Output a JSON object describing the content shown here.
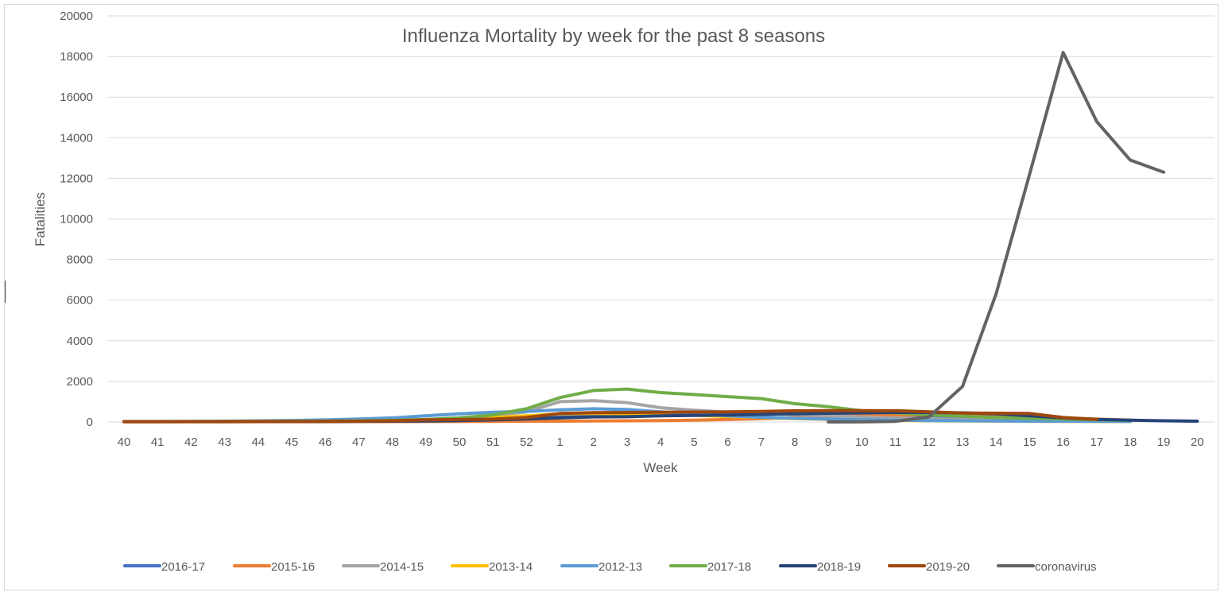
{
  "chart_data": {
    "type": "line",
    "title": "Influenza Mortality by week for the past 8 seasons",
    "xlabel": "Week",
    "ylabel": "Fatalities",
    "ylim": [
      0,
      20000
    ],
    "yticks": [
      "0",
      "2000",
      "4000",
      "6000",
      "8000",
      "10000",
      "12000",
      "14000",
      "16000",
      "18000",
      "20000"
    ],
    "categories": [
      "40",
      "41",
      "42",
      "43",
      "44",
      "45",
      "46",
      "47",
      "48",
      "49",
      "50",
      "51",
      "52",
      "1",
      "2",
      "3",
      "4",
      "5",
      "6",
      "7",
      "8",
      "9",
      "10",
      "11",
      "12",
      "13",
      "14",
      "15",
      "16",
      "17",
      "18",
      "19",
      "20"
    ],
    "grid": "horizontal",
    "legend_position": "bottom",
    "series": [
      {
        "name": "2016-17",
        "color": "#4472c4",
        "values": [
          20,
          20,
          20,
          20,
          20,
          25,
          30,
          35,
          45,
          60,
          75,
          100,
          150,
          250,
          350,
          400,
          420,
          430,
          440,
          420,
          380,
          350,
          320,
          290,
          260,
          220,
          180,
          150,
          110,
          80,
          60,
          null,
          null
        ]
      },
      {
        "name": "2015-16",
        "color": "#ed7d31",
        "values": [
          15,
          15,
          15,
          15,
          15,
          15,
          15,
          20,
          20,
          25,
          25,
          30,
          35,
          40,
          50,
          60,
          70,
          90,
          120,
          160,
          210,
          270,
          310,
          340,
          360,
          350,
          320,
          270,
          200,
          140,
          90,
          null,
          null
        ]
      },
      {
        "name": "2014-15",
        "color": "#a5a5a5",
        "values": [
          20,
          20,
          20,
          25,
          25,
          30,
          40,
          55,
          80,
          120,
          200,
          320,
          500,
          1000,
          1050,
          950,
          700,
          580,
          480,
          420,
          360,
          300,
          250,
          200,
          160,
          120,
          90,
          70,
          50,
          40,
          30,
          null,
          null
        ]
      },
      {
        "name": "2013-14",
        "color": "#ffc000",
        "values": [
          15,
          15,
          15,
          15,
          20,
          25,
          35,
          50,
          70,
          100,
          150,
          220,
          300,
          400,
          420,
          410,
          380,
          330,
          270,
          220,
          170,
          130,
          100,
          80,
          60,
          50,
          40,
          35,
          30,
          25,
          20,
          null,
          null
        ]
      },
      {
        "name": "2012-13",
        "color": "#5b9bd5",
        "values": [
          20,
          25,
          30,
          40,
          55,
          75,
          100,
          150,
          200,
          300,
          400,
          480,
          520,
          600,
          650,
          620,
          500,
          400,
          300,
          230,
          180,
          140,
          110,
          90,
          70,
          60,
          50,
          40,
          35,
          30,
          25,
          null,
          null
        ]
      },
      {
        "name": "2017-18",
        "color": "#70ad47",
        "values": [
          20,
          20,
          20,
          25,
          30,
          35,
          45,
          60,
          80,
          120,
          200,
          350,
          650,
          1200,
          1550,
          1620,
          1450,
          1350,
          1250,
          1150,
          900,
          750,
          550,
          450,
          350,
          280,
          220,
          180,
          140,
          110,
          80,
          null,
          null
        ]
      },
      {
        "name": "2018-19",
        "color": "#264478",
        "values": [
          15,
          15,
          15,
          15,
          20,
          20,
          25,
          30,
          40,
          50,
          70,
          100,
          150,
          200,
          250,
          260,
          300,
          320,
          340,
          370,
          400,
          430,
          450,
          470,
          470,
          450,
          400,
          300,
          200,
          130,
          90,
          60,
          40
        ]
      },
      {
        "name": "2019-20",
        "color": "#9e480e",
        "values": [
          15,
          15,
          20,
          20,
          20,
          25,
          30,
          40,
          60,
          100,
          120,
          140,
          220,
          420,
          460,
          470,
          480,
          490,
          500,
          520,
          550,
          560,
          560,
          550,
          500,
          440,
          430,
          420,
          220,
          130,
          null,
          null,
          null
        ]
      },
      {
        "name": "coronavirus",
        "color": "#636363",
        "values": [
          null,
          null,
          null,
          null,
          null,
          null,
          null,
          null,
          null,
          null,
          null,
          null,
          null,
          null,
          null,
          null,
          null,
          null,
          null,
          null,
          null,
          0,
          5,
          30,
          250,
          1750,
          6300,
          12200,
          18200,
          14800,
          12900,
          12300,
          null
        ]
      }
    ]
  }
}
